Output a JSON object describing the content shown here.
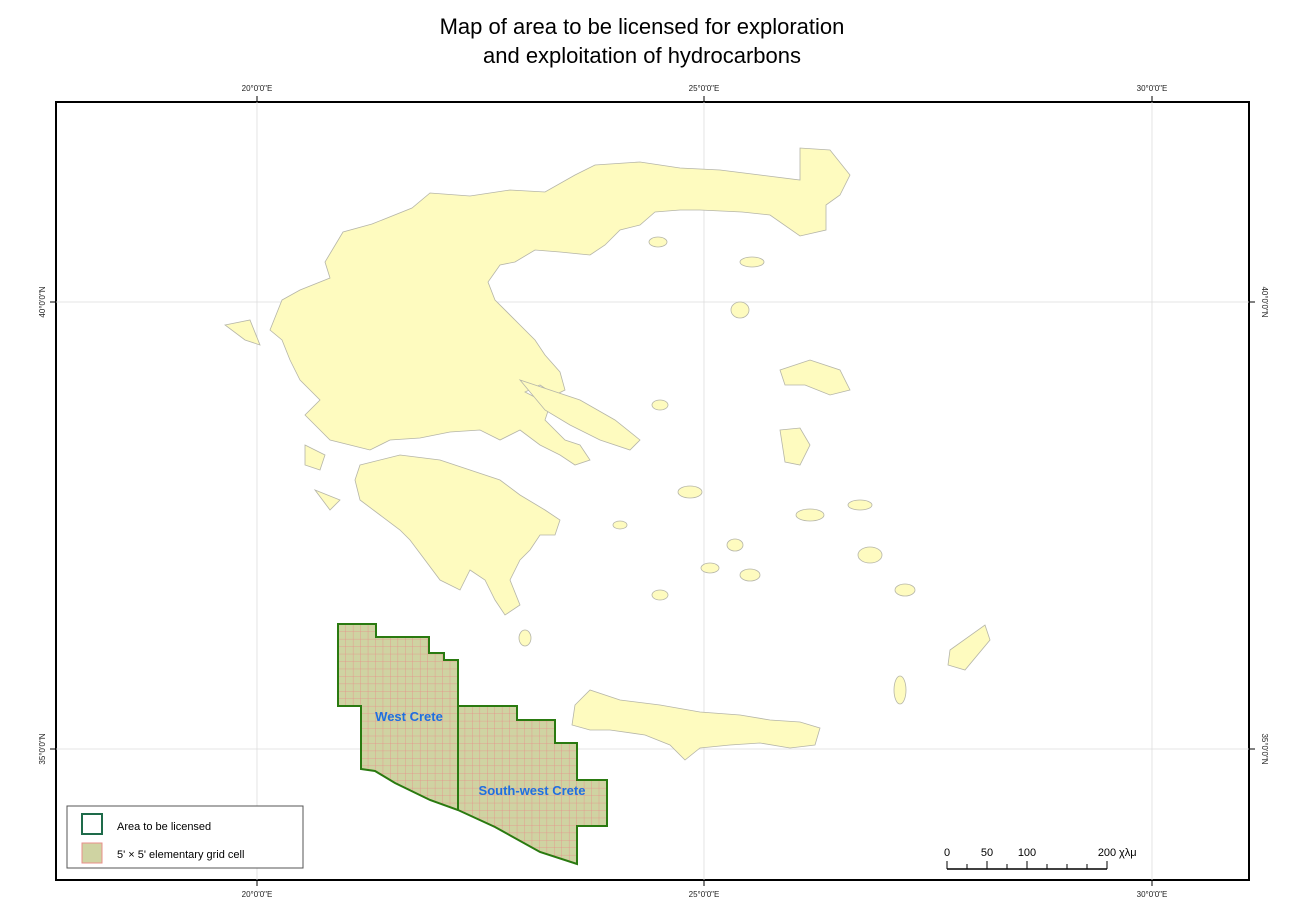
{
  "title": [
    "Map of area to be licensed for exploration",
    "and exploitation of hydrocarbons"
  ],
  "lon_labels": [
    "20°0'0\"E",
    "25°0'0\"E",
    "30°0'0\"E"
  ],
  "lat_labels": [
    "40°0'0\"N",
    "35°0'0\"N"
  ],
  "areas": [
    "West Crete",
    "South-west Crete"
  ],
  "legend": [
    "Area to be licensed",
    "5' × 5' elementary grid cell"
  ],
  "scale_bar": {
    "ticks": [
      0,
      50,
      100,
      200
    ],
    "unit": "χλμ"
  }
}
